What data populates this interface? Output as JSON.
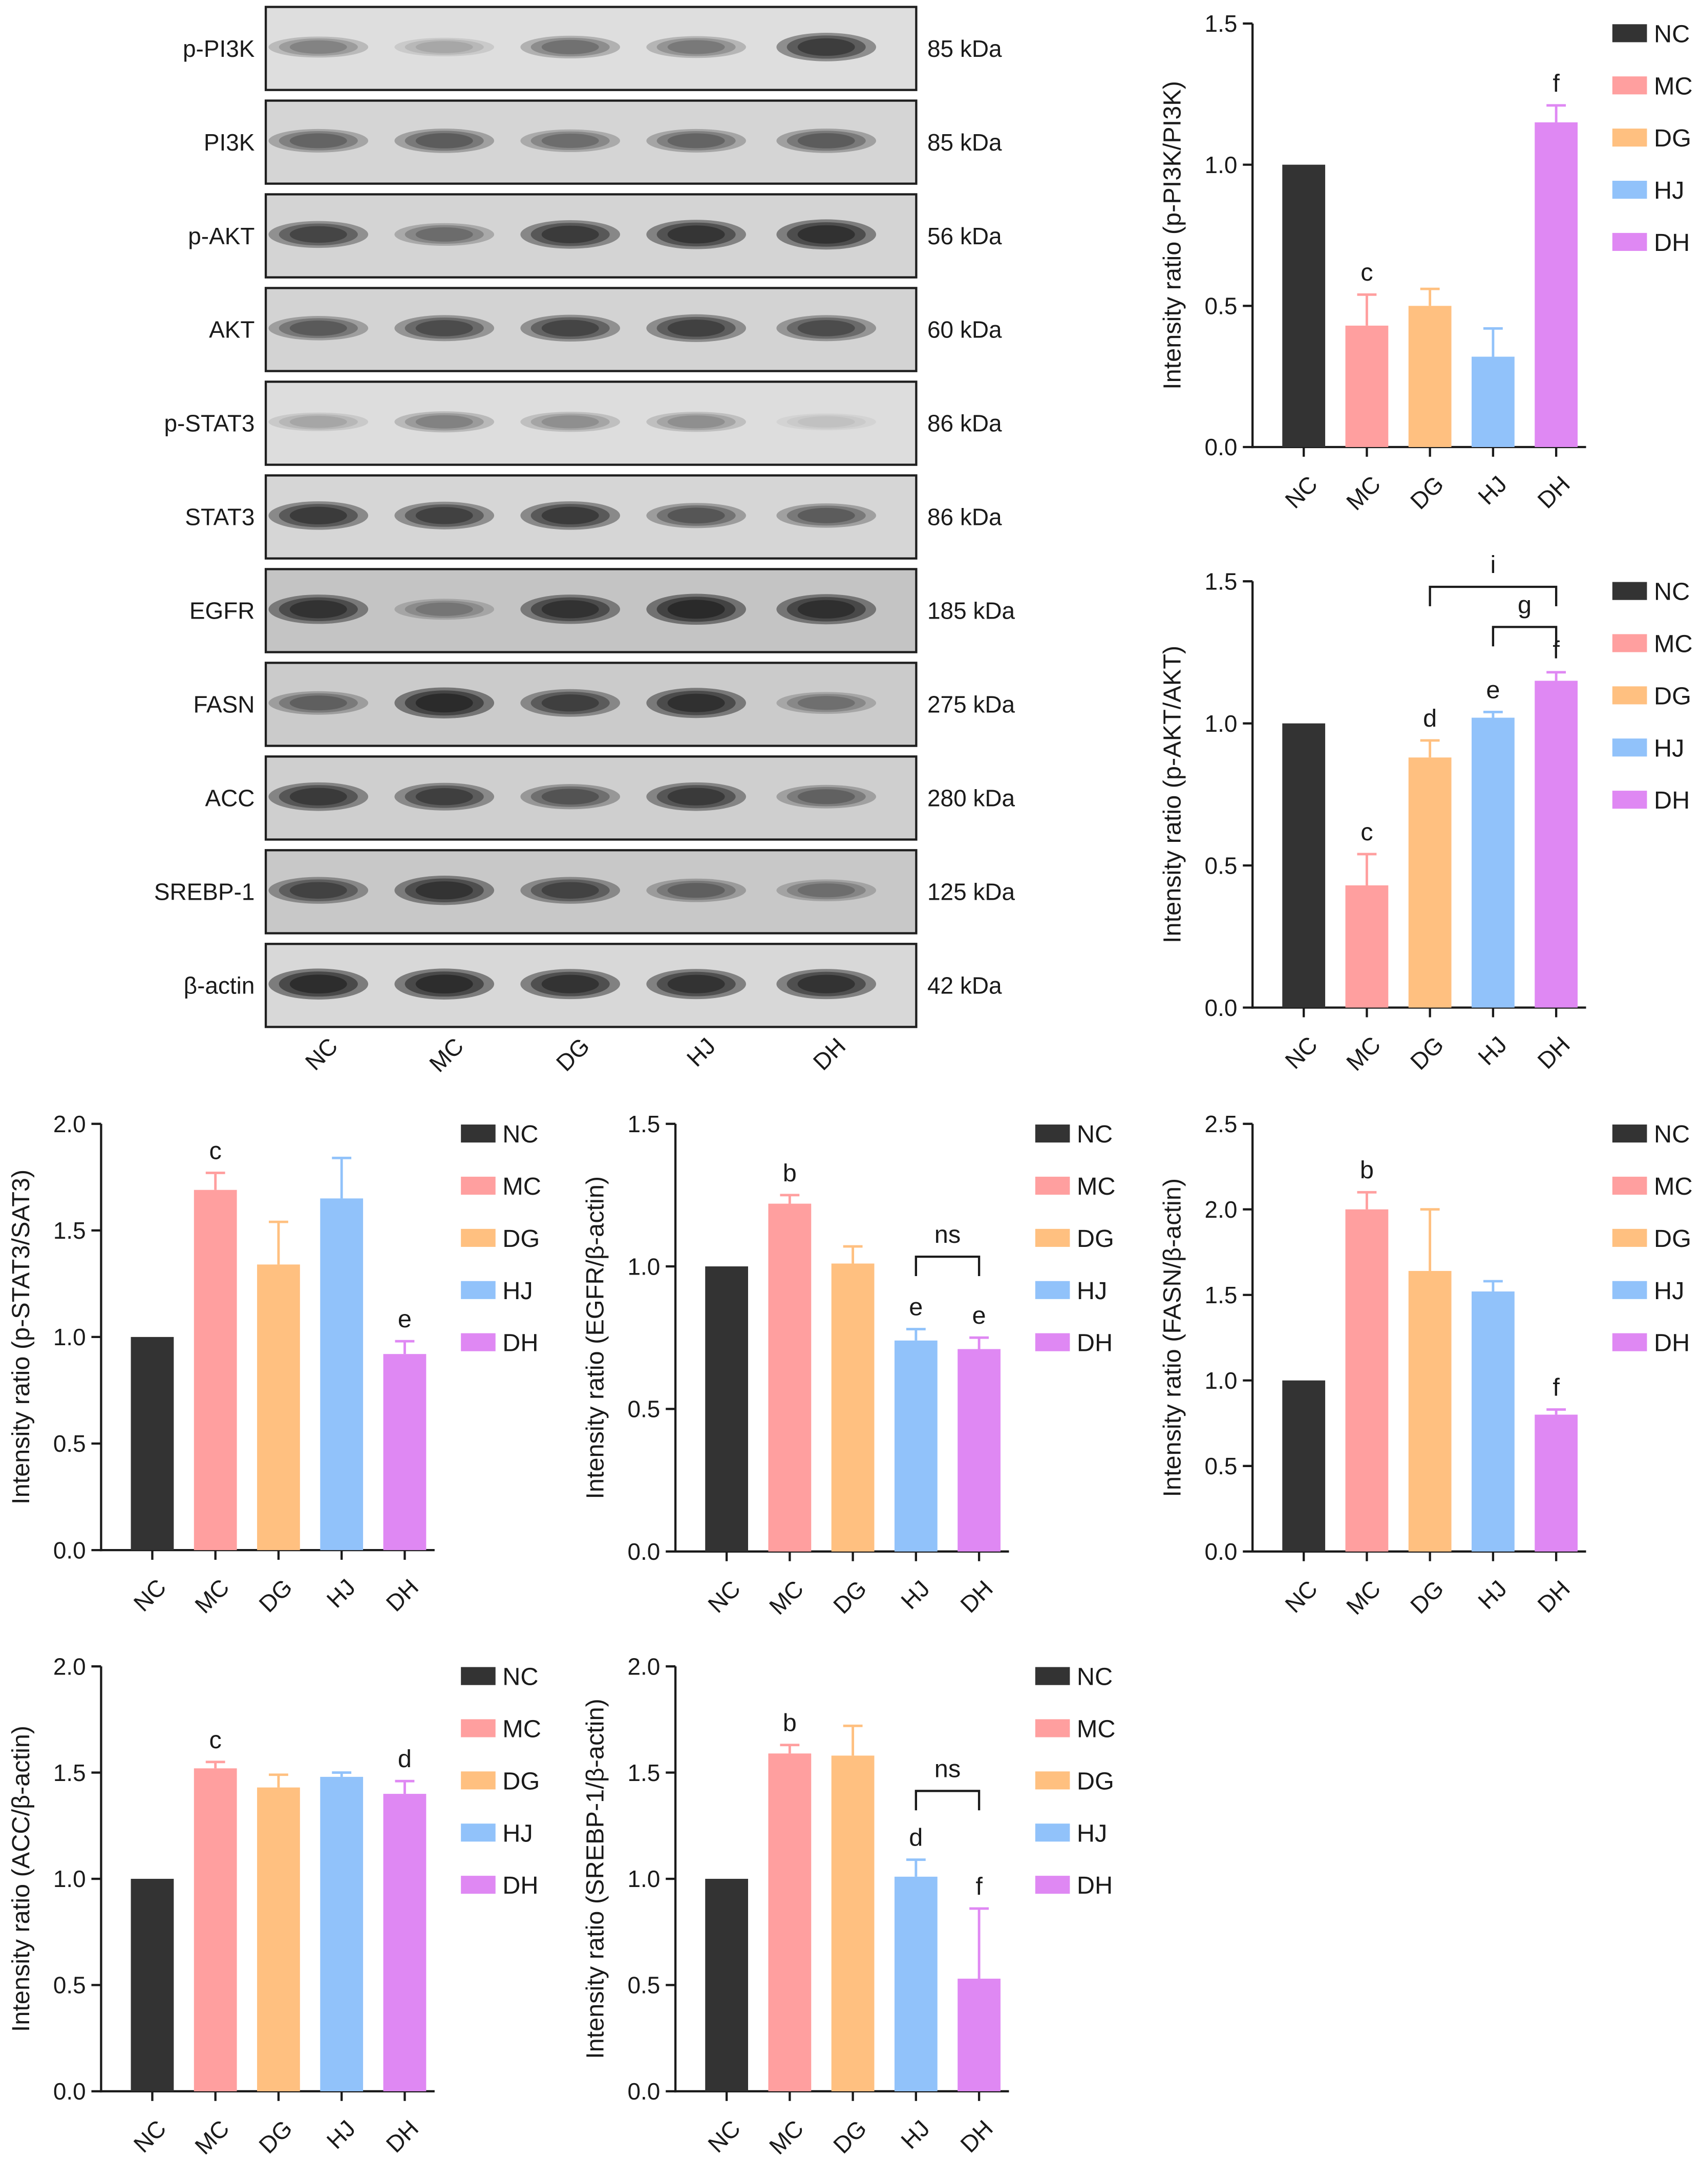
{
  "colors": {
    "NC": "#333333",
    "MC": "#ff9f9f",
    "DG": "#ffc080",
    "HJ": "#91c2fa",
    "DH": "#df88f3"
  },
  "blot": {
    "lanes": [
      "NC",
      "MC",
      "DG",
      "HJ",
      "DH"
    ],
    "rows": [
      {
        "protein": "p-PI3K",
        "size": "85 kDa",
        "bg": "#dedede",
        "intensity": [
          0.35,
          0.2,
          0.45,
          0.4,
          0.8
        ]
      },
      {
        "protein": "PI3K",
        "size": "85 kDa",
        "bg": "#d5d5d5",
        "intensity": [
          0.5,
          0.55,
          0.45,
          0.5,
          0.55
        ]
      },
      {
        "protein": "p-AKT",
        "size": "56 kDa",
        "bg": "#d4d4d4",
        "intensity": [
          0.7,
          0.45,
          0.8,
          0.85,
          0.9
        ]
      },
      {
        "protein": "AKT",
        "size": "60 kDa",
        "bg": "#d3d3d3",
        "intensity": [
          0.55,
          0.65,
          0.7,
          0.75,
          0.65
        ]
      },
      {
        "protein": "p-STAT3",
        "size": "86 kDa",
        "bg": "#dddddd",
        "intensity": [
          0.2,
          0.35,
          0.3,
          0.3,
          0.1
        ]
      },
      {
        "protein": "STAT3",
        "size": "86 kDa",
        "bg": "#d6d6d6",
        "intensity": [
          0.8,
          0.75,
          0.8,
          0.6,
          0.55
        ]
      },
      {
        "protein": "EGFR",
        "size": "185 kDa",
        "bg": "#c4c4c4",
        "intensity": [
          0.85,
          0.35,
          0.85,
          0.95,
          0.9
        ]
      },
      {
        "protein": "FASN",
        "size": "275 kDa",
        "bg": "#cbcbcb",
        "intensity": [
          0.5,
          0.95,
          0.75,
          0.9,
          0.4
        ]
      },
      {
        "protein": "ACC",
        "size": "280 kDa",
        "bg": "#cfcfcf",
        "intensity": [
          0.8,
          0.75,
          0.6,
          0.8,
          0.5
        ]
      },
      {
        "protein": "SREBP-1",
        "size": "125 kDa",
        "bg": "#c8c8c8",
        "intensity": [
          0.7,
          0.85,
          0.7,
          0.5,
          0.4
        ]
      },
      {
        "protein": "β-actin",
        "size": "42 kDa",
        "bg": "#d8d8d8",
        "intensity": [
          0.95,
          0.95,
          0.9,
          0.9,
          0.9
        ]
      }
    ]
  },
  "chart_data": [
    {
      "type": "bar",
      "categories": [
        "NC",
        "MC",
        "DG",
        "HJ",
        "DH"
      ],
      "values": [
        1.0,
        0.43,
        0.5,
        0.32,
        1.15
      ],
      "errors": [
        0,
        0.11,
        0.06,
        0.1,
        0.06
      ],
      "ylabel": "Intensity ratio (p-PI3K/PI3K)",
      "ylim": [
        0,
        1.5
      ],
      "yticks": [
        "0.0",
        "0.5",
        "1.0",
        "1.5"
      ],
      "grid": false,
      "legend": [
        "NC",
        "MC",
        "DG",
        "HJ",
        "DH"
      ],
      "legend_position": "right",
      "annotations": [
        {
          "category": "MC",
          "text": "c"
        },
        {
          "category": "DH",
          "text": "f"
        }
      ],
      "brackets": []
    },
    {
      "type": "bar",
      "categories": [
        "NC",
        "MC",
        "DG",
        "HJ",
        "DH"
      ],
      "values": [
        1.0,
        0.43,
        0.88,
        1.02,
        1.15
      ],
      "errors": [
        0,
        0.11,
        0.06,
        0.02,
        0.03
      ],
      "ylabel": "Intensity ratio (p-AKT/AKT)",
      "ylim": [
        0,
        1.5
      ],
      "yticks": [
        "0.0",
        "0.5",
        "1.0",
        "1.5"
      ],
      "grid": false,
      "legend": [
        "NC",
        "MC",
        "DG",
        "HJ",
        "DH"
      ],
      "legend_position": "right",
      "annotations": [
        {
          "category": "MC",
          "text": "c"
        },
        {
          "category": "DG",
          "text": "d"
        },
        {
          "category": "HJ",
          "text": "e"
        },
        {
          "category": "DH",
          "text": "f"
        }
      ],
      "brackets": [
        {
          "from": "DG",
          "to": "DH",
          "text": "i"
        },
        {
          "from": "HJ",
          "to": "DH",
          "text": "g"
        }
      ]
    },
    {
      "type": "bar",
      "categories": [
        "NC",
        "MC",
        "DG",
        "HJ",
        "DH"
      ],
      "values": [
        1.0,
        1.69,
        1.34,
        1.65,
        0.92
      ],
      "errors": [
        0,
        0.08,
        0.2,
        0.19,
        0.06
      ],
      "ylabel": "Intensity ratio (p-STAT3/SAT3)",
      "ylim": [
        0,
        2.0
      ],
      "yticks": [
        "0.0",
        "0.5",
        "1.0",
        "1.5",
        "2.0"
      ],
      "grid": false,
      "legend": [
        "NC",
        "MC",
        "DG",
        "HJ",
        "DH"
      ],
      "legend_position": "right",
      "annotations": [
        {
          "category": "MC",
          "text": "c"
        },
        {
          "category": "DH",
          "text": "e"
        }
      ],
      "brackets": []
    },
    {
      "type": "bar",
      "categories": [
        "NC",
        "MC",
        "DG",
        "HJ",
        "DH"
      ],
      "values": [
        1.0,
        1.22,
        1.01,
        0.74,
        0.71
      ],
      "errors": [
        0,
        0.03,
        0.06,
        0.04,
        0.04
      ],
      "ylabel": "Intensity ratio (EGFR/β-actin)",
      "ylim": [
        0,
        1.5
      ],
      "yticks": [
        "0.0",
        "0.5",
        "1.0",
        "1.5"
      ],
      "grid": false,
      "legend": [
        "NC",
        "MC",
        "DG",
        "HJ",
        "DH"
      ],
      "legend_position": "right",
      "annotations": [
        {
          "category": "MC",
          "text": "b"
        },
        {
          "category": "HJ",
          "text": "e"
        },
        {
          "category": "DH",
          "text": "e"
        }
      ],
      "brackets": [
        {
          "from": "HJ",
          "to": "DH",
          "text": "ns"
        }
      ]
    },
    {
      "type": "bar",
      "categories": [
        "NC",
        "MC",
        "DG",
        "HJ",
        "DH"
      ],
      "values": [
        1.0,
        2.0,
        1.64,
        1.52,
        0.8
      ],
      "errors": [
        0,
        0.1,
        0.36,
        0.06,
        0.03
      ],
      "ylabel": "Intensity ratio (FASN/β-actin)",
      "ylim": [
        0,
        2.5
      ],
      "yticks": [
        "0.0",
        "0.5",
        "1.0",
        "1.5",
        "2.0",
        "2.5"
      ],
      "grid": false,
      "legend": [
        "NC",
        "MC",
        "DG",
        "HJ",
        "DH"
      ],
      "legend_position": "right",
      "annotations": [
        {
          "category": "MC",
          "text": "b"
        },
        {
          "category": "DH",
          "text": "f"
        }
      ],
      "brackets": []
    },
    {
      "type": "bar",
      "categories": [
        "NC",
        "MC",
        "DG",
        "HJ",
        "DH"
      ],
      "values": [
        1.0,
        1.52,
        1.43,
        1.48,
        1.4
      ],
      "errors": [
        0,
        0.03,
        0.06,
        0.02,
        0.06
      ],
      "ylabel": "Intensity ratio (ACC/β-actin)",
      "ylim": [
        0,
        2.0
      ],
      "yticks": [
        "0.0",
        "0.5",
        "1.0",
        "1.5",
        "2.0"
      ],
      "grid": false,
      "legend": [
        "NC",
        "MC",
        "DG",
        "HJ",
        "DH"
      ],
      "legend_position": "right",
      "annotations": [
        {
          "category": "MC",
          "text": "c"
        },
        {
          "category": "DH",
          "text": "d"
        }
      ],
      "brackets": []
    },
    {
      "type": "bar",
      "categories": [
        "NC",
        "MC",
        "DG",
        "HJ",
        "DH"
      ],
      "values": [
        1.0,
        1.59,
        1.58,
        1.01,
        0.53
      ],
      "errors": [
        0,
        0.04,
        0.14,
        0.08,
        0.33
      ],
      "ylabel": "Intensity ratio (SREBP-1/β-actin)",
      "ylim": [
        0,
        2.0
      ],
      "yticks": [
        "0.0",
        "0.5",
        "1.0",
        "1.5",
        "2.0"
      ],
      "grid": false,
      "legend": [
        "NC",
        "MC",
        "DG",
        "HJ",
        "DH"
      ],
      "legend_position": "right",
      "annotations": [
        {
          "category": "MC",
          "text": "b"
        },
        {
          "category": "HJ",
          "text": "d"
        },
        {
          "category": "DH",
          "text": "f"
        }
      ],
      "brackets": [
        {
          "from": "HJ",
          "to": "DH",
          "text": "ns"
        }
      ]
    }
  ]
}
